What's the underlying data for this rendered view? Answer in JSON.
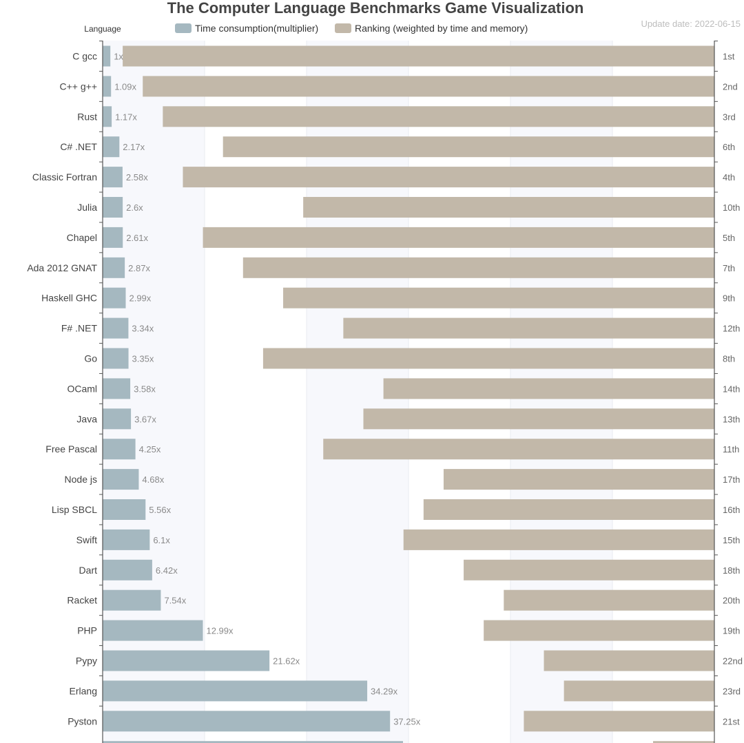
{
  "chart_data": {
    "type": "bar",
    "orientation": "horizontal",
    "title": "The Computer Language Benchmarks Game Visualization",
    "update_date": "Update date: 2022-06-15",
    "yaxis_name": "Language",
    "legend_placement": "top",
    "grid": true,
    "categories": [
      "C gcc",
      "C++ g++",
      "Rust",
      "C# .NET",
      "Classic Fortran",
      "Julia",
      "Chapel",
      "Ada 2012 GNAT",
      "Haskell GHC",
      "F# .NET",
      "Go",
      "OCaml",
      "Java",
      "Free Pascal",
      "Node js",
      "Lisp SBCL",
      "Swift",
      "Dart",
      "Racket",
      "PHP",
      "Pypy",
      "Erlang",
      "Pyston"
    ],
    "series": [
      {
        "name": "Time consumption(multiplier)",
        "color": "#a5b8c0",
        "values": [
          1,
          1.09,
          1.17,
          2.17,
          2.58,
          2.6,
          2.61,
          2.87,
          2.99,
          3.34,
          3.35,
          3.58,
          3.67,
          4.25,
          4.68,
          5.56,
          6.1,
          6.42,
          7.54,
          12.99,
          21.62,
          34.29,
          37.25
        ],
        "labels": [
          "1x",
          "1.09x",
          "1.17x",
          "2.17x",
          "2.58x",
          "2.6x",
          "2.61x",
          "2.87x",
          "2.99x",
          "3.34x",
          "3.35x",
          "3.58x",
          "3.67x",
          "4.25x",
          "4.68x",
          "5.56x",
          "6.1x",
          "6.42x",
          "7.54x",
          "12.99x",
          "21.62x",
          "34.29x",
          "37.25x"
        ]
      },
      {
        "name": "Ranking (weighted by time and memory)",
        "color": "#c2b8a9",
        "values": [
          1,
          2,
          3,
          6,
          4,
          10,
          5,
          7,
          9,
          12,
          8,
          14,
          13,
          11,
          17,
          16,
          15,
          18,
          20,
          19,
          22,
          23,
          21
        ],
        "labels": [
          "1st",
          "2nd",
          "3rd",
          "6th",
          "4th",
          "10th",
          "5th",
          "7th",
          "9th",
          "12th",
          "8th",
          "14th",
          "13th",
          "11th",
          "17th",
          "16th",
          "15th",
          "18th",
          "20th",
          "19th",
          "22nd",
          "23rd",
          "21st"
        ]
      }
    ]
  }
}
